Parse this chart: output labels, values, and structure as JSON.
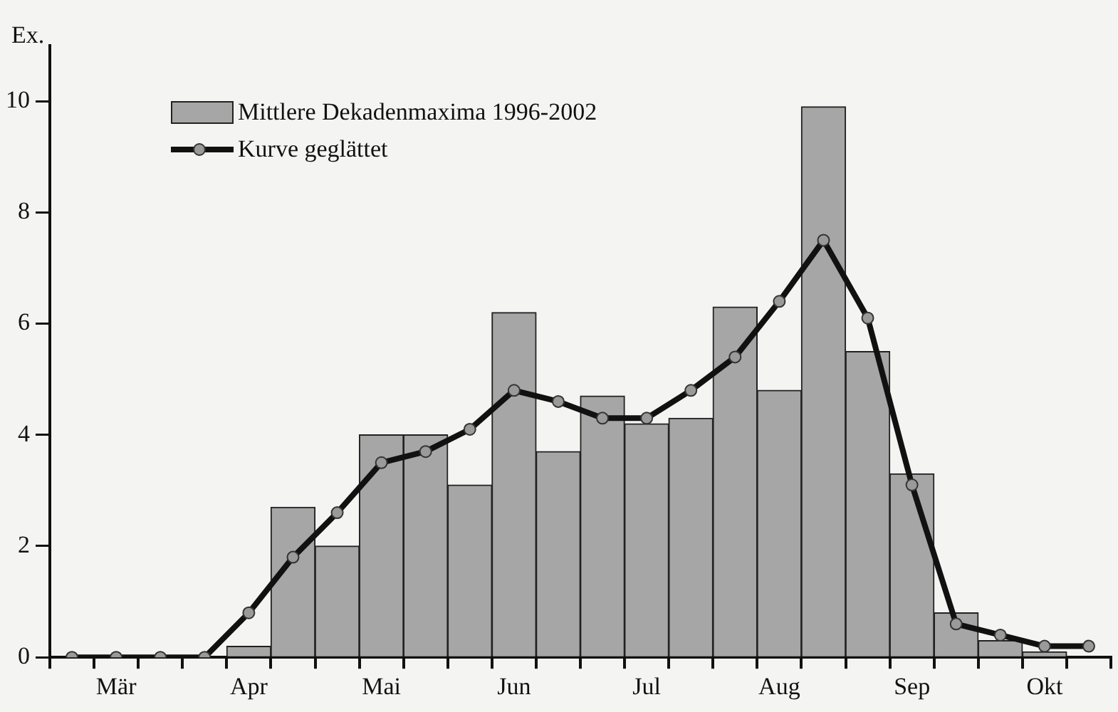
{
  "chart_data": {
    "type": "bar",
    "ylabel": "Ex.",
    "categories": [
      null,
      "Mär",
      null,
      null,
      "Apr",
      null,
      null,
      "Mai",
      null,
      null,
      "Jun",
      null,
      null,
      "Jul",
      null,
      null,
      "Aug",
      null,
      null,
      "Sep",
      null,
      null,
      "Okt",
      null
    ],
    "series": [
      {
        "name": "Mittlere Dekadenmaxima 1996-2002",
        "color": "#a6a6a6",
        "values": [
          0,
          0,
          0,
          0,
          0.2,
          2.7,
          2.0,
          4.0,
          4.0,
          3.1,
          6.2,
          3.7,
          4.7,
          4.2,
          4.3,
          6.3,
          4.8,
          9.9,
          5.5,
          3.3,
          0.8,
          0.3,
          0.1,
          0
        ]
      },
      {
        "name": "Kurve geglättet",
        "type": "line",
        "color": "#111111",
        "values": [
          0,
          0,
          0,
          0,
          0.8,
          1.8,
          2.6,
          3.5,
          3.7,
          4.1,
          4.8,
          4.6,
          4.3,
          4.3,
          4.8,
          5.4,
          6.4,
          7.5,
          6.1,
          3.1,
          0.6,
          0.4,
          0.2,
          0.2
        ]
      }
    ],
    "ylim": [
      0,
      11
    ],
    "yticks": [
      0,
      2,
      4,
      6,
      8,
      10
    ],
    "grid": false,
    "legend": "top left",
    "marker": "circle",
    "line_style": "solid"
  }
}
